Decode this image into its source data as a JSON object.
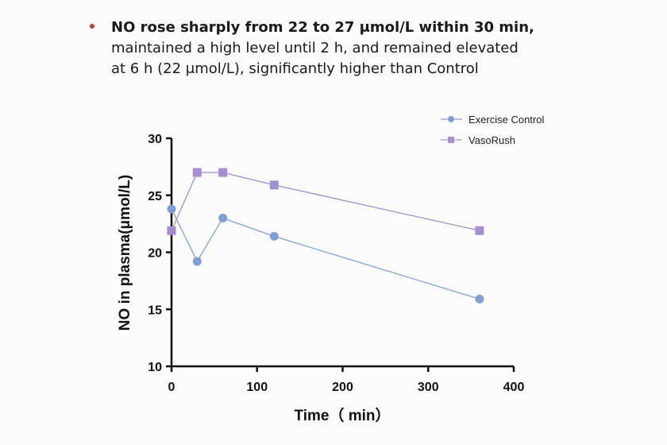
{
  "text": {
    "line1": "NO rose sharply from 22 to 27 μmol/L within 30 min,",
    "line2": "maintained a high level until 2 h, and remained elevated",
    "line3": "at 6 h (22 μmol/L), significantly higher than Control"
  },
  "colors": {
    "bullet": "#c0392b",
    "control": "#7f9fd6",
    "control_line": "#8aa6d8",
    "vasorush": "#a58fd2",
    "vasorush_line": "#a895cc",
    "axis": "#111111"
  },
  "chart_data": {
    "type": "line",
    "xlabel": "Time（ min）",
    "ylabel": "NO in plasma(μmol/L)",
    "xlim": [
      0,
      400
    ],
    "ylim": [
      10,
      30
    ],
    "xticks": [
      0,
      100,
      200,
      300,
      400
    ],
    "yticks": [
      10,
      15,
      20,
      25,
      30
    ],
    "legend_position": "top-right",
    "series": [
      {
        "name": "Exercise Control",
        "marker": "circle",
        "x": [
          0,
          30,
          60,
          120,
          360
        ],
        "values": [
          23.8,
          19.2,
          23.0,
          21.4,
          15.9
        ]
      },
      {
        "name": "VasoRush",
        "marker": "square",
        "x": [
          0,
          30,
          60,
          120,
          360
        ],
        "values": [
          21.9,
          27.0,
          27.0,
          25.9,
          21.9
        ]
      }
    ]
  }
}
